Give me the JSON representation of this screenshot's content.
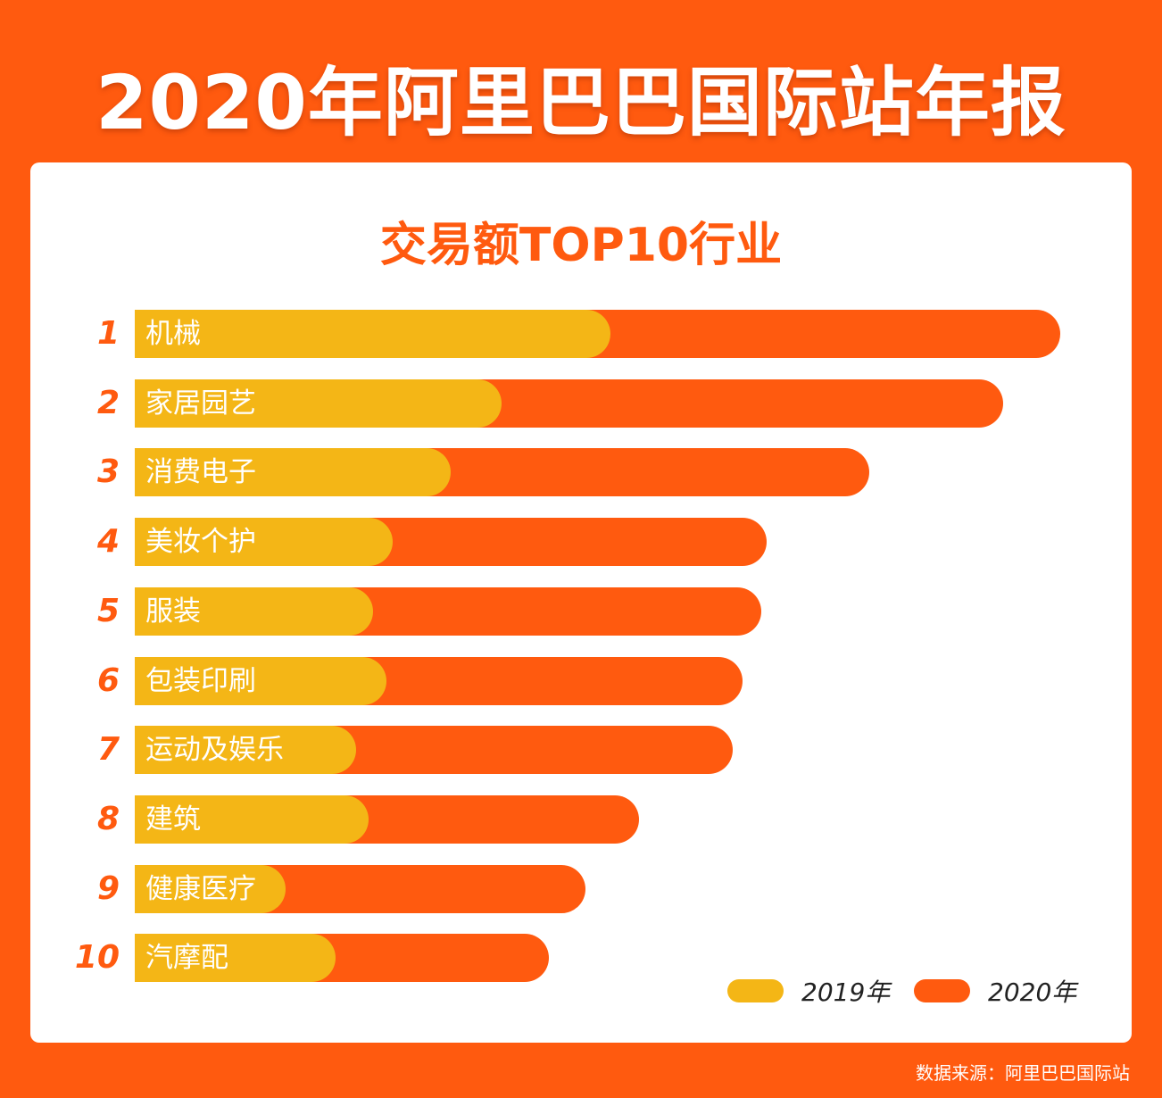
{
  "title": "2020年阿里巴巴国际站年报",
  "source": "数据来源：阿里巴巴国际站",
  "colors": {
    "background": "#FF5A0F",
    "series_2019": "#F4B616",
    "series_2020": "#FF5A0F"
  },
  "chart_data": {
    "type": "bar",
    "orientation": "horizontal",
    "title": "交易额TOP10行业",
    "note": "no axis printed; values are relative bar lengths (2020 top bar = 100)",
    "ranks": [
      "1",
      "2",
      "3",
      "4",
      "5",
      "6",
      "7",
      "8",
      "9",
      "10"
    ],
    "categories": [
      "机械",
      "家居园艺",
      "消费电子",
      "美妆个护",
      "服装",
      "包装印刷",
      "运动及娱乐",
      "建筑",
      "健康医疗",
      "汽摩配"
    ],
    "series": [
      {
        "name": "2019年",
        "color": "#F4B616",
        "values": [
          51.4,
          39.6,
          34.1,
          27.9,
          25.7,
          27.2,
          23.9,
          25.3,
          16.3,
          21.7
        ]
      },
      {
        "name": "2020年",
        "color": "#FF5A0F",
        "values": [
          100,
          93.8,
          79.4,
          68.3,
          67.7,
          65.7,
          64.6,
          54.5,
          48.7,
          44.7
        ]
      }
    ],
    "legend": "bottom-right",
    "grid": false
  }
}
